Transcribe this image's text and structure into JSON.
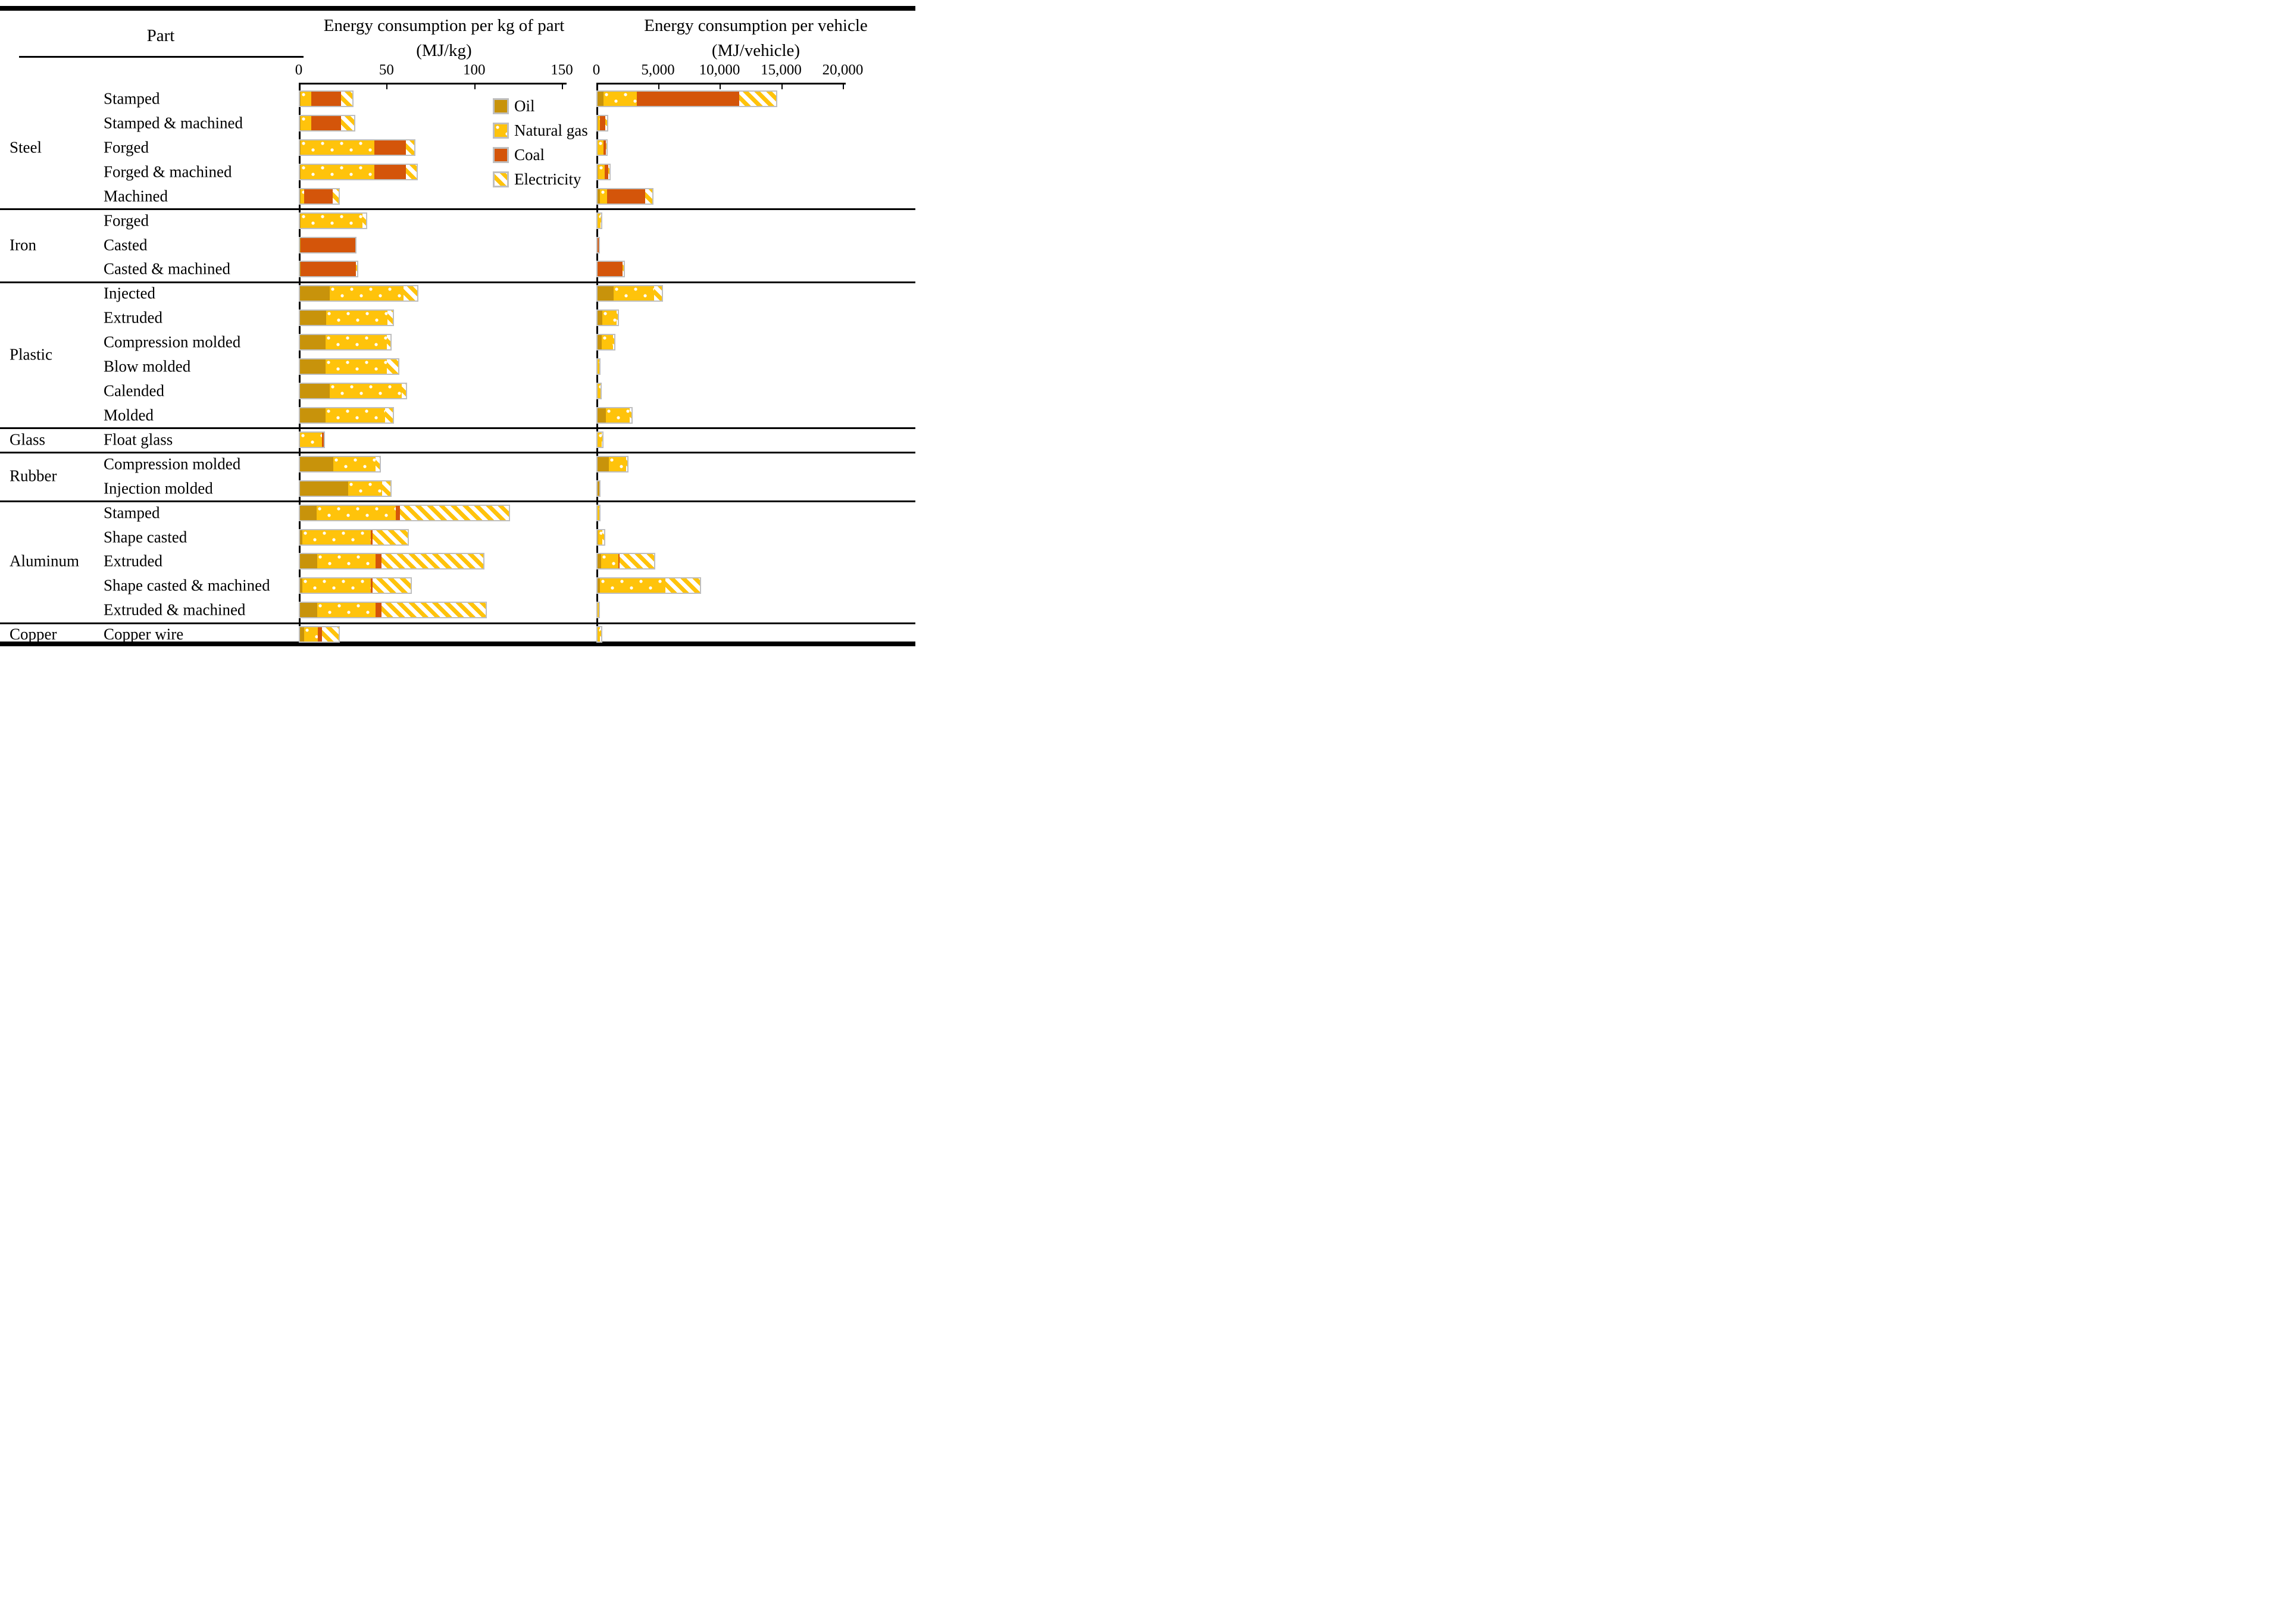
{
  "part_header": "Part",
  "charts": [
    {
      "title_line1": "Energy consumption per kg of part",
      "title_line2": "(MJ/kg)",
      "ticks": [
        {
          "value": 0,
          "label": "0"
        },
        {
          "value": 50,
          "label": "50"
        },
        {
          "value": 100,
          "label": "100"
        },
        {
          "value": 150,
          "label": "150"
        }
      ],
      "range": [
        0,
        150
      ]
    },
    {
      "title_line1": "Energy consumption per vehicle",
      "title_line2": "(MJ/vehicle)",
      "ticks": [
        {
          "value": 0,
          "label": "0"
        },
        {
          "value": 5000,
          "label": "5,000"
        },
        {
          "value": 10000,
          "label": "10,000"
        },
        {
          "value": 15000,
          "label": "15,000"
        },
        {
          "value": 20000,
          "label": "20,000"
        }
      ],
      "range": [
        0,
        20000
      ]
    }
  ],
  "legend": {
    "items": [
      {
        "key": "oil",
        "label": "Oil",
        "color": "#C8930B",
        "pattern": "solid"
      },
      {
        "key": "gas",
        "label": "Natural gas",
        "color": "#FFC30B",
        "pattern": "white-dots"
      },
      {
        "key": "coal",
        "label": "Coal",
        "color": "#D4550A",
        "pattern": "solid"
      },
      {
        "key": "elec",
        "label": "Electricity",
        "color": "#FFC30B",
        "pattern": "diagonal-stripes-on-white"
      }
    ]
  },
  "chart_data": {
    "type": "bar",
    "orientation": "horizontal",
    "stacked": true,
    "grid": false,
    "legend_position": "inside-top-of-left-chart",
    "series_keys": [
      "Oil",
      "Natural gas",
      "Coal",
      "Electricity"
    ],
    "units": [
      "MJ/kg",
      "MJ/vehicle"
    ],
    "groups": [
      {
        "material": "Steel",
        "rows": [
          {
            "process": "Stamped",
            "per_kg_MJ": {
              "oil": 0.5,
              "gas": 6,
              "coal": 17,
              "elec": 6.5
            },
            "per_vehicle_MJ": {
              "oil": 500,
              "gas": 2700,
              "coal": 8300,
              "elec": 3000
            }
          },
          {
            "process": "Stamped & machined",
            "per_kg_MJ": {
              "oil": 0.5,
              "gas": 6,
              "coal": 17,
              "elec": 7.5
            },
            "per_vehicle_MJ": {
              "oil": 50,
              "gas": 150,
              "coal": 450,
              "elec": 100
            }
          },
          {
            "process": "Forged",
            "per_kg_MJ": {
              "oil": 0.5,
              "gas": 42,
              "coal": 18,
              "elec": 4.5
            },
            "per_vehicle_MJ": {
              "oil": 0,
              "gas": 500,
              "coal": 170,
              "elec": 60
            }
          },
          {
            "process": "Forged & machined",
            "per_kg_MJ": {
              "oil": 0.5,
              "gas": 42,
              "coal": 18,
              "elec": 6
            },
            "per_vehicle_MJ": {
              "oil": 50,
              "gas": 550,
              "coal": 250,
              "elec": 100
            }
          },
          {
            "process": "Machined",
            "per_kg_MJ": {
              "oil": 0.5,
              "gas": 2,
              "coal": 16,
              "elec": 3.5
            },
            "per_vehicle_MJ": {
              "oil": 200,
              "gas": 550,
              "coal": 3100,
              "elec": 600
            }
          }
        ]
      },
      {
        "material": "Iron",
        "rows": [
          {
            "process": "Forged",
            "per_kg_MJ": {
              "oil": 0.5,
              "gas": 35,
              "coal": 0,
              "elec": 2
            },
            "per_vehicle_MJ": {
              "oil": 0,
              "gas": 260,
              "coal": 0,
              "elec": 40
            }
          },
          {
            "process": "Casted",
            "per_kg_MJ": {
              "oil": 0.5,
              "gas": 0,
              "coal": 31,
              "elec": 0
            },
            "per_vehicle_MJ": {
              "oil": 0,
              "gas": 0,
              "coal": 120,
              "elec": 0
            }
          },
          {
            "process": "Casted & machined",
            "per_kg_MJ": {
              "oil": 0.5,
              "gas": 0,
              "coal": 31.5,
              "elec": 0.5
            },
            "per_vehicle_MJ": {
              "oil": 0,
              "gas": 0,
              "coal": 2050,
              "elec": 60
            }
          }
        ]
      },
      {
        "material": "Plastic",
        "rows": [
          {
            "process": "Injected",
            "per_kg_MJ": {
              "oil": 17,
              "gas": 42,
              "coal": 0,
              "elec": 8
            },
            "per_vehicle_MJ": {
              "oil": 1300,
              "gas": 3300,
              "coal": 0,
              "elec": 600
            }
          },
          {
            "process": "Extruded",
            "per_kg_MJ": {
              "oil": 15,
              "gas": 35,
              "coal": 0,
              "elec": 3
            },
            "per_vehicle_MJ": {
              "oil": 400,
              "gas": 1150,
              "coal": 0,
              "elec": 100
            }
          },
          {
            "process": "Compression molded",
            "per_kg_MJ": {
              "oil": 14.5,
              "gas": 35,
              "coal": 0,
              "elec": 2
            },
            "per_vehicle_MJ": {
              "oil": 350,
              "gas": 900,
              "coal": 0,
              "elec": 100
            }
          },
          {
            "process": "Blow molded",
            "per_kg_MJ": {
              "oil": 14.5,
              "gas": 35,
              "coal": 0,
              "elec": 6.5
            },
            "per_vehicle_MJ": {
              "oil": 0,
              "gas": 150,
              "coal": 0,
              "elec": 0
            }
          },
          {
            "process": "Calended",
            "per_kg_MJ": {
              "oil": 17,
              "gas": 41,
              "coal": 0,
              "elec": 2.5
            },
            "per_vehicle_MJ": {
              "oil": 0,
              "gas": 250,
              "coal": 0,
              "elec": 0
            }
          },
          {
            "process": "Molded",
            "per_kg_MJ": {
              "oil": 14.5,
              "gas": 34,
              "coal": 0,
              "elec": 4.5
            },
            "per_vehicle_MJ": {
              "oil": 700,
              "gas": 1900,
              "coal": 0,
              "elec": 150
            }
          }
        ]
      },
      {
        "material": "Glass",
        "rows": [
          {
            "process": "Float glass",
            "per_kg_MJ": {
              "oil": 0,
              "gas": 12.5,
              "coal": 1,
              "elec": 0
            },
            "per_vehicle_MJ": {
              "oil": 0,
              "gas": 350,
              "coal": 0,
              "elec": 50
            }
          }
        ]
      },
      {
        "material": "Rubber",
        "rows": [
          {
            "process": "Compression molded",
            "per_kg_MJ": {
              "oil": 19,
              "gas": 24,
              "coal": 0,
              "elec": 2.5
            },
            "per_vehicle_MJ": {
              "oil": 900,
              "gas": 1400,
              "coal": 0,
              "elec": 100
            }
          },
          {
            "process": "Injection molded",
            "per_kg_MJ": {
              "oil": 27.5,
              "gas": 19.5,
              "coal": 0,
              "elec": 4.5
            },
            "per_vehicle_MJ": {
              "oil": 150,
              "gas": 0,
              "coal": 0,
              "elec": 0
            }
          }
        ]
      },
      {
        "material": "Aluminum",
        "rows": [
          {
            "process": "Stamped",
            "per_kg_MJ": {
              "oil": 9.5,
              "gas": 45,
              "coal": 2.5,
              "elec": 62
            },
            "per_vehicle_MJ": {
              "oil": 0,
              "gas": 150,
              "coal": 0,
              "elec": 0
            }
          },
          {
            "process": "Shape casted",
            "per_kg_MJ": {
              "oil": 1.5,
              "gas": 39,
              "coal": 1,
              "elec": 20
            },
            "per_vehicle_MJ": {
              "oil": 50,
              "gas": 350,
              "coal": 0,
              "elec": 150
            }
          },
          {
            "process": "Extruded",
            "per_kg_MJ": {
              "oil": 10,
              "gas": 33,
              "coal": 3.5,
              "elec": 58
            },
            "per_vehicle_MJ": {
              "oil": 300,
              "gas": 1400,
              "coal": 100,
              "elec": 2800
            }
          },
          {
            "process": "Shape casted & machined",
            "per_kg_MJ": {
              "oil": 1.5,
              "gas": 39,
              "coal": 1,
              "elec": 21.5
            },
            "per_vehicle_MJ": {
              "oil": 200,
              "gas": 5300,
              "coal": 0,
              "elec": 2800
            }
          },
          {
            "process": "Extruded & machined",
            "per_kg_MJ": {
              "oil": 10,
              "gas": 33,
              "coal": 3.5,
              "elec": 59.5
            },
            "per_vehicle_MJ": {
              "oil": 0,
              "gas": 100,
              "coal": 0,
              "elec": 0
            }
          }
        ]
      },
      {
        "material": "Copper",
        "rows": [
          {
            "process": "Copper wire",
            "per_kg_MJ": {
              "oil": 2.4,
              "gas": 7.8,
              "coal": 2.4,
              "elec": 9.4
            },
            "per_vehicle_MJ": {
              "oil": 0,
              "gas": 170,
              "coal": 0,
              "elec": 100
            }
          }
        ]
      }
    ]
  }
}
